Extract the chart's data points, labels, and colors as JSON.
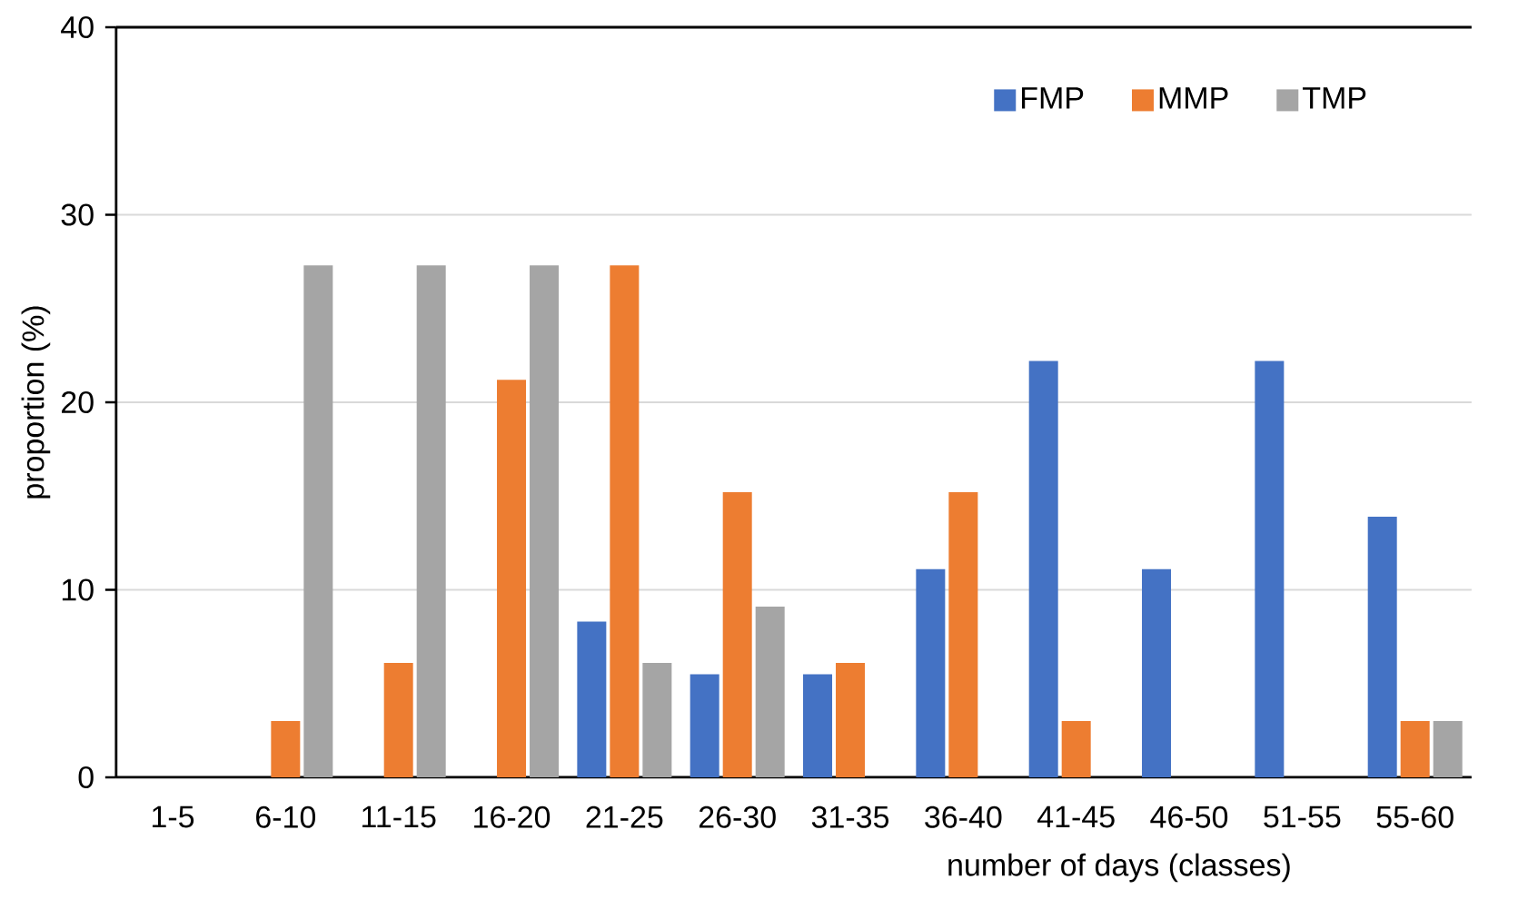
{
  "chart_data": {
    "type": "bar",
    "xlabel": "number of days (classes)",
    "ylabel": "proportion (%)",
    "categories": [
      "1-5",
      "6-10",
      "11-15",
      "16-20",
      "21-25",
      "26-30",
      "31-35",
      "36-40",
      "41-45",
      "46-50",
      "51-55",
      "55-60"
    ],
    "series": [
      {
        "name": "FMP",
        "color": "#4472c4",
        "values": [
          0,
          0,
          0,
          0,
          8.3,
          5.5,
          5.5,
          11.1,
          22.2,
          11.1,
          22.2,
          13.9
        ]
      },
      {
        "name": "MMP",
        "color": "#ed7d31",
        "values": [
          0,
          3.0,
          6.1,
          21.2,
          27.3,
          15.2,
          6.1,
          15.2,
          3.0,
          0,
          0,
          3.0
        ]
      },
      {
        "name": "TMP",
        "color": "#a5a5a5",
        "values": [
          0,
          27.3,
          27.3,
          27.3,
          6.1,
          9.1,
          0,
          0,
          0,
          0,
          0,
          3.0
        ]
      }
    ],
    "ylim": [
      0,
      40
    ],
    "yticks": [
      0,
      10,
      20,
      30,
      40
    ],
    "grid": "y",
    "legend": "top right"
  }
}
